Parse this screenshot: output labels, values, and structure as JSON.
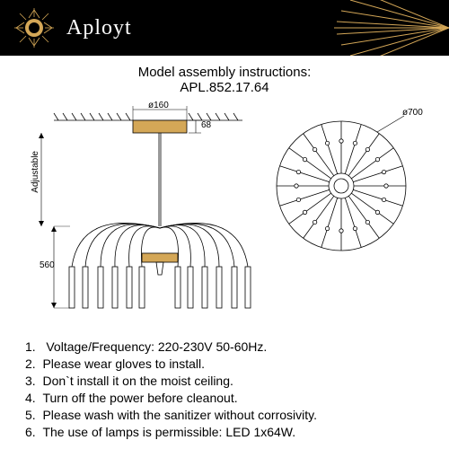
{
  "header": {
    "brand": "Aployt",
    "logo_color": "#d4a757",
    "bg": "#000000"
  },
  "title": {
    "line1": "Model assembly instructions:",
    "line2": "APL.852.17.64"
  },
  "diagram": {
    "canopy_width": "ø160",
    "canopy_height": "68",
    "adjustable_label": "Adjustable",
    "drop_height": "560",
    "top_diameter": "ø700",
    "arm_count": 20,
    "accent_color": "#d4a757",
    "line_color": "#000000"
  },
  "instructions": [
    "Voltage/Frequency: 220-230V 50-60Hz.",
    "Please wear gloves to install.",
    "Don`t install it on the moist ceiling.",
    "Turn off the power before cleanout.",
    "Please wash with the sanitizer without corrosivity.",
    "The use of lamps is permissible: LED 1x64W."
  ]
}
